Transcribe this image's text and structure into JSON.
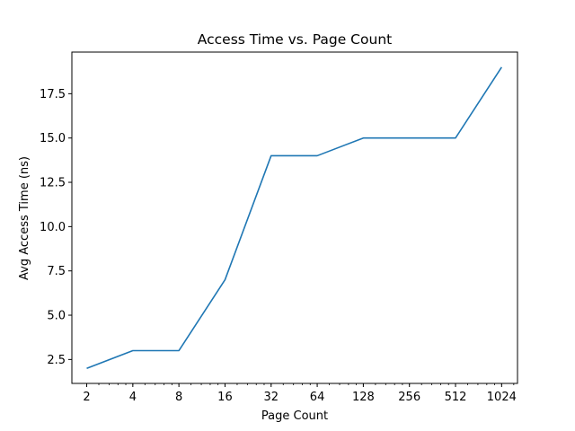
{
  "chart_data": {
    "type": "line",
    "title": "Access Time vs. Page Count",
    "xlabel": "Page Count",
    "ylabel": "Avg Access Time (ns)",
    "xscale": "log2",
    "x": [
      2,
      4,
      8,
      16,
      32,
      64,
      128,
      256,
      512,
      1024
    ],
    "series": [
      {
        "values": [
          2,
          3,
          3,
          7,
          14,
          14,
          15,
          15,
          15,
          19
        ]
      }
    ],
    "x_ticks": [
      "2",
      "4",
      "8",
      "16",
      "32",
      "64",
      "128",
      "256",
      "512",
      "1024"
    ],
    "y_ticks": [
      "2.5",
      "5.0",
      "7.5",
      "10.0",
      "12.5",
      "15.0",
      "17.5"
    ],
    "xlim": [
      1.6,
      1300
    ],
    "ylim": [
      1.15,
      19.85
    ],
    "grid": false,
    "line_color": "#1f77b4"
  }
}
